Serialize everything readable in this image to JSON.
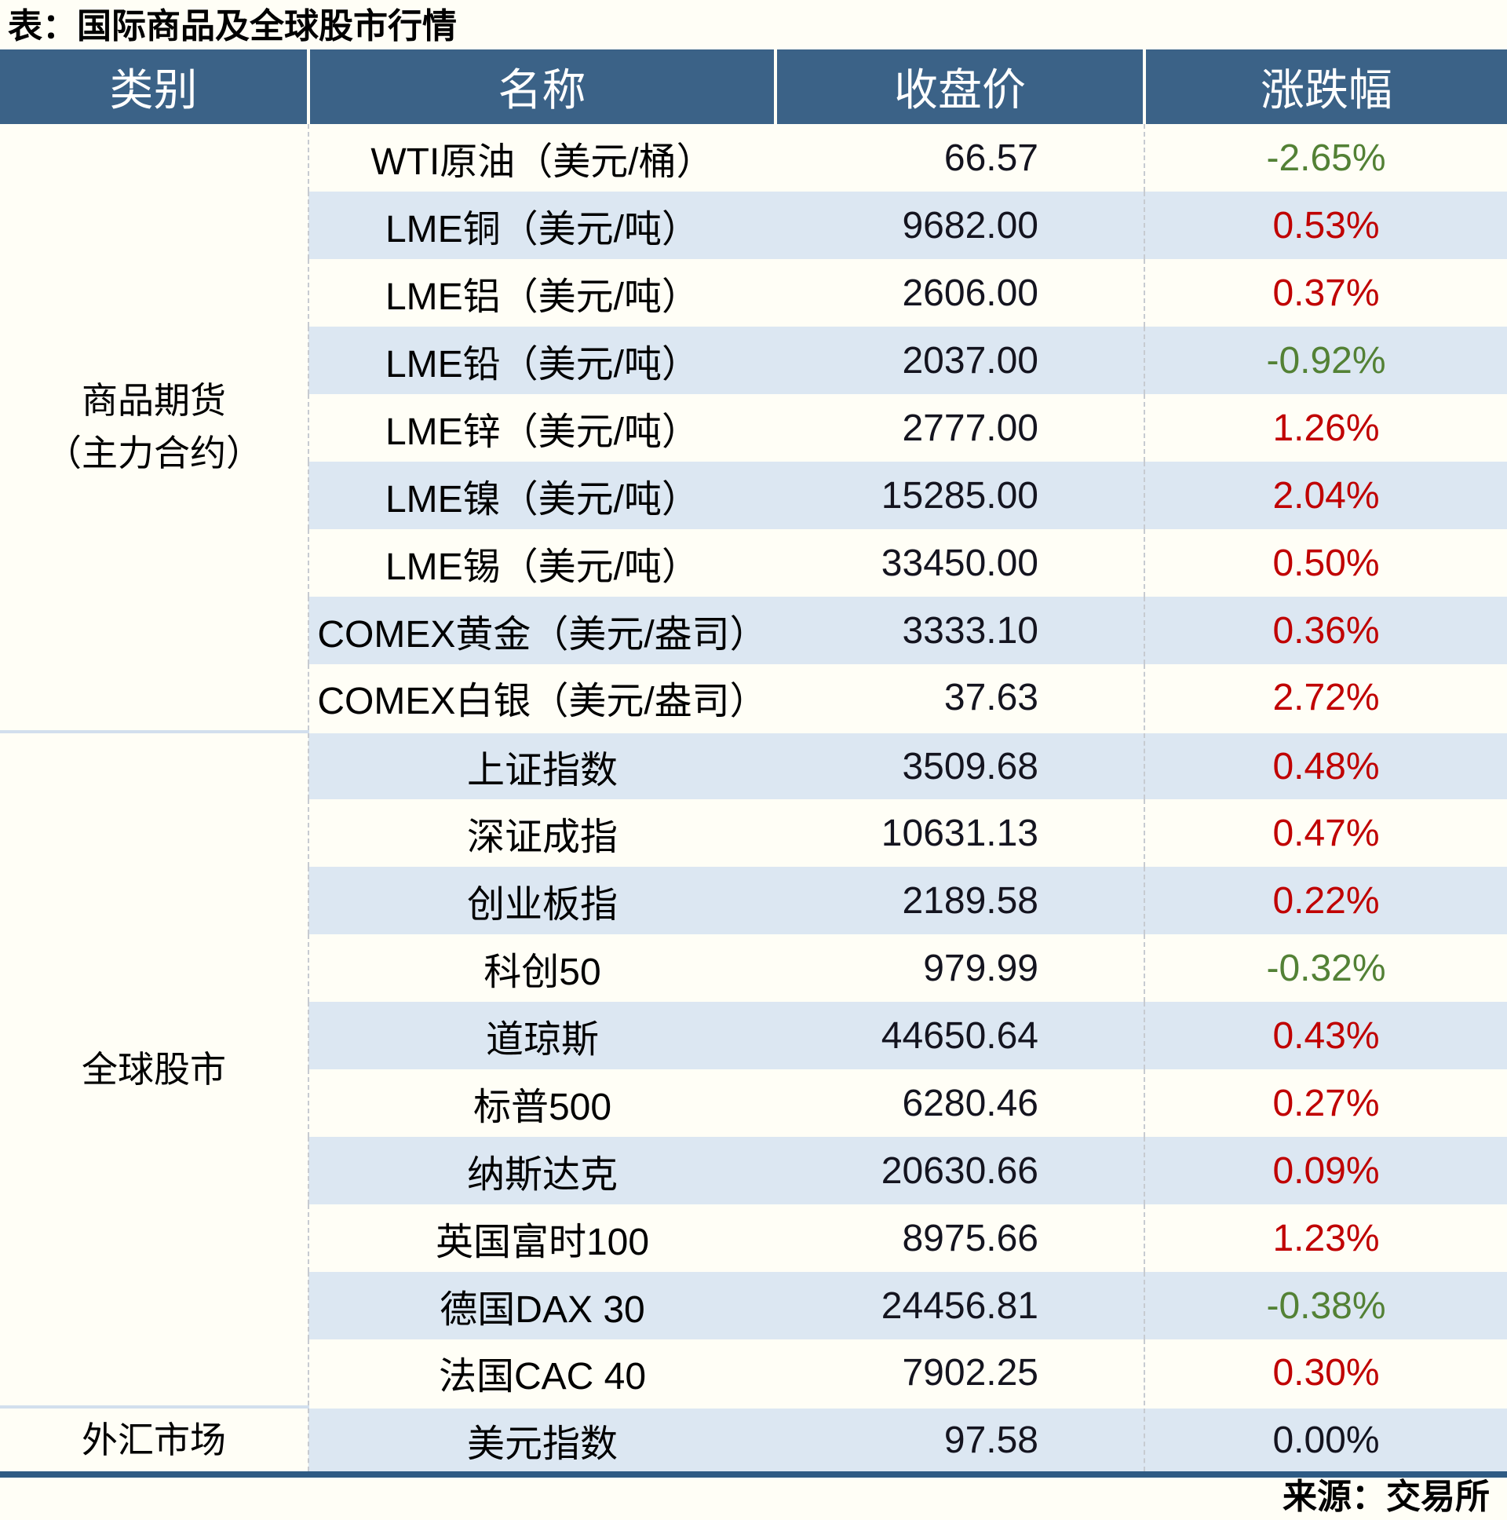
{
  "title": "表：国际商品及全球股市行情",
  "source": "来源：交易所",
  "colors": {
    "up": "#c00000",
    "down": "#538135",
    "flat": "#14141f",
    "header_bg": "#3b6287",
    "stripe": "#dce7f2",
    "bottom_border": "#2f5b84"
  },
  "table": {
    "headers": [
      "类别",
      "名称",
      "收盘价",
      "涨跌幅"
    ],
    "groups": [
      {
        "category_lines": [
          "商品期货",
          "（主力合约）"
        ],
        "rows": [
          {
            "name": "WTI原油（美元/桶）",
            "close": "66.57",
            "change": "-2.65%",
            "dir": "down"
          },
          {
            "name": "LME铜（美元/吨）",
            "close": "9682.00",
            "change": "0.53%",
            "dir": "up"
          },
          {
            "name": "LME铝（美元/吨）",
            "close": "2606.00",
            "change": "0.37%",
            "dir": "up"
          },
          {
            "name": "LME铅（美元/吨）",
            "close": "2037.00",
            "change": "-0.92%",
            "dir": "down"
          },
          {
            "name": "LME锌（美元/吨）",
            "close": "2777.00",
            "change": "1.26%",
            "dir": "up"
          },
          {
            "name": "LME镍（美元/吨）",
            "close": "15285.00",
            "change": "2.04%",
            "dir": "up"
          },
          {
            "name": "LME锡（美元/吨）",
            "close": "33450.00",
            "change": "0.50%",
            "dir": "up"
          },
          {
            "name": "COMEX黄金（美元/盎司）",
            "close": "3333.10",
            "change": "0.36%",
            "dir": "up"
          },
          {
            "name": "COMEX白银（美元/盎司）",
            "close": "37.63",
            "change": "2.72%",
            "dir": "up"
          }
        ]
      },
      {
        "category_lines": [
          "全球股市"
        ],
        "rows": [
          {
            "name": "上证指数",
            "close": "3509.68",
            "change": "0.48%",
            "dir": "up"
          },
          {
            "name": "深证成指",
            "close": "10631.13",
            "change": "0.47%",
            "dir": "up"
          },
          {
            "name": "创业板指",
            "close": "2189.58",
            "change": "0.22%",
            "dir": "up"
          },
          {
            "name": "科创50",
            "close": "979.99",
            "change": "-0.32%",
            "dir": "down"
          },
          {
            "name": "道琼斯",
            "close": "44650.64",
            "change": "0.43%",
            "dir": "up"
          },
          {
            "name": "标普500",
            "close": "6280.46",
            "change": "0.27%",
            "dir": "up"
          },
          {
            "name": "纳斯达克",
            "close": "20630.66",
            "change": "0.09%",
            "dir": "up"
          },
          {
            "name": "英国富时100",
            "close": "8975.66",
            "change": "1.23%",
            "dir": "up"
          },
          {
            "name": "德国DAX 30",
            "close": "24456.81",
            "change": "-0.38%",
            "dir": "down"
          },
          {
            "name": "法国CAC 40",
            "close": "7902.25",
            "change": "0.30%",
            "dir": "up"
          }
        ]
      },
      {
        "category_lines": [
          "外汇市场"
        ],
        "rows": [
          {
            "name": "美元指数",
            "close": "97.58",
            "change": "0.00%",
            "dir": "flat"
          }
        ]
      }
    ]
  }
}
